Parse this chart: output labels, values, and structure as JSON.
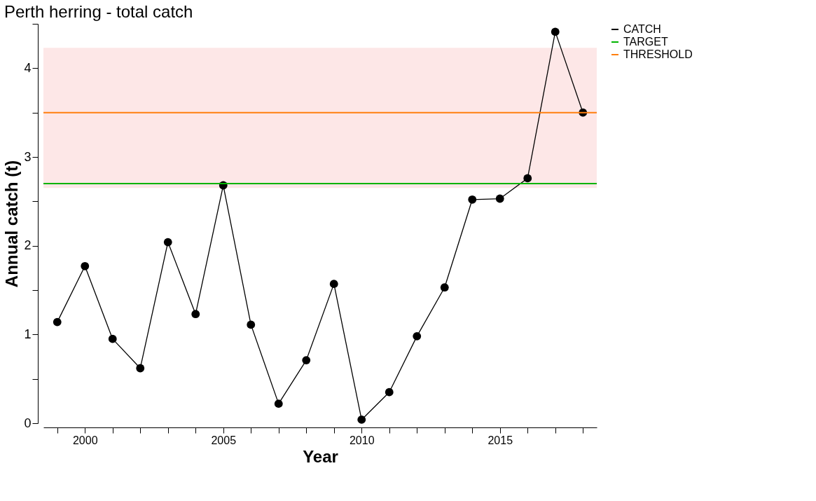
{
  "chart_data": {
    "type": "line",
    "title": "Perth herring - total catch",
    "xlabel": "Year",
    "ylabel": "Annual catch (t)",
    "x": [
      1999,
      2000,
      2001,
      2002,
      2003,
      2004,
      2005,
      2006,
      2007,
      2008,
      2009,
      2010,
      2011,
      2012,
      2013,
      2014,
      2015,
      2016,
      2017,
      2018
    ],
    "series": [
      {
        "name": "CATCH",
        "color": "#000000",
        "values": [
          1.14,
          1.77,
          0.95,
          0.62,
          2.04,
          1.23,
          2.68,
          1.11,
          0.22,
          0.71,
          1.57,
          0.04,
          0.35,
          0.98,
          1.53,
          2.52,
          2.53,
          2.76,
          4.41,
          3.5
        ]
      }
    ],
    "ref_lines": [
      {
        "axis": "y",
        "value": 2.7,
        "label": "TARGET",
        "color": "#00b400"
      },
      {
        "axis": "y",
        "value": 3.5,
        "label": "THRESHOLD",
        "color": "#ff7f0e"
      }
    ],
    "bands": [
      {
        "axis": "y",
        "from": 2.65,
        "to": 4.23,
        "color": "#fde4e4"
      }
    ],
    "xlim": [
      1998.5,
      2018.5
    ],
    "xticks": [
      {
        "value": 1999,
        "label": null
      },
      2000,
      {
        "value": 2001,
        "label": null
      },
      {
        "value": 2002,
        "label": null
      },
      {
        "value": 2003,
        "label": null
      },
      {
        "value": 2004,
        "label": null
      },
      2005,
      {
        "value": 2006,
        "label": null
      },
      {
        "value": 2007,
        "label": null
      },
      {
        "value": 2008,
        "label": null
      },
      {
        "value": 2009,
        "label": null
      },
      2010,
      {
        "value": 2011,
        "label": null
      },
      {
        "value": 2012,
        "label": null
      },
      {
        "value": 2013,
        "label": null
      },
      {
        "value": 2014,
        "label": null
      },
      2015,
      {
        "value": 2016,
        "label": null
      },
      {
        "value": 2017,
        "label": null
      },
      {
        "value": 2018,
        "label": null
      }
    ],
    "ylim": [
      0,
      4.5
    ],
    "yticks": [
      0,
      {
        "value": 0.5,
        "label": null
      },
      1,
      {
        "value": 1.5,
        "label": null
      },
      2,
      {
        "value": 2.5,
        "label": null
      },
      3,
      {
        "value": 3.5,
        "label": null
      },
      4,
      {
        "value": 4.5,
        "label": null
      }
    ],
    "grid": false,
    "legend": "top right",
    "marker": "circle",
    "line_style": "solid"
  }
}
